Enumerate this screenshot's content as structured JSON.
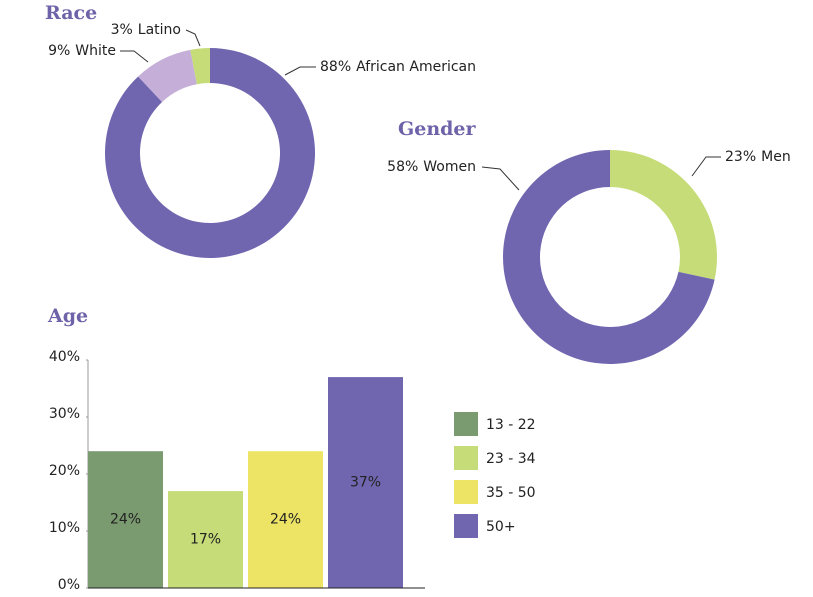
{
  "chart_data": [
    {
      "type": "donut",
      "title": "Race",
      "categories": [
        "African American",
        "White",
        "Latino"
      ],
      "values": [
        88,
        9,
        3
      ],
      "value_labels": [
        "88%",
        "9%",
        "3%"
      ],
      "colors": [
        "#7066b0",
        "#c5aed8",
        "#c5dc78"
      ]
    },
    {
      "type": "donut",
      "title": "Gender",
      "categories": [
        "Men",
        "Women"
      ],
      "values": [
        23,
        58
      ],
      "value_labels": [
        "23%",
        "58%"
      ],
      "colors": [
        "#c5dc78",
        "#7066b0"
      ]
    },
    {
      "type": "bar",
      "title": "Age",
      "categories": [
        "13 - 22",
        "23 - 34",
        "35 - 50",
        "50+"
      ],
      "values": [
        24,
        17,
        24,
        37
      ],
      "value_labels": [
        "24%",
        "17%",
        "24%",
        "37%"
      ],
      "colors": [
        "#7a9a70",
        "#c5dc78",
        "#ede466",
        "#7066b0"
      ],
      "ylim": [
        0,
        40
      ],
      "yticks": [
        {
          "value": 0,
          "label": "0%"
        },
        {
          "value": 10,
          "label": "10%"
        },
        {
          "value": 20,
          "label": "20%"
        },
        {
          "value": 30,
          "label": "30%"
        },
        {
          "value": 40,
          "label": "40%"
        }
      ],
      "legend": "right"
    }
  ]
}
